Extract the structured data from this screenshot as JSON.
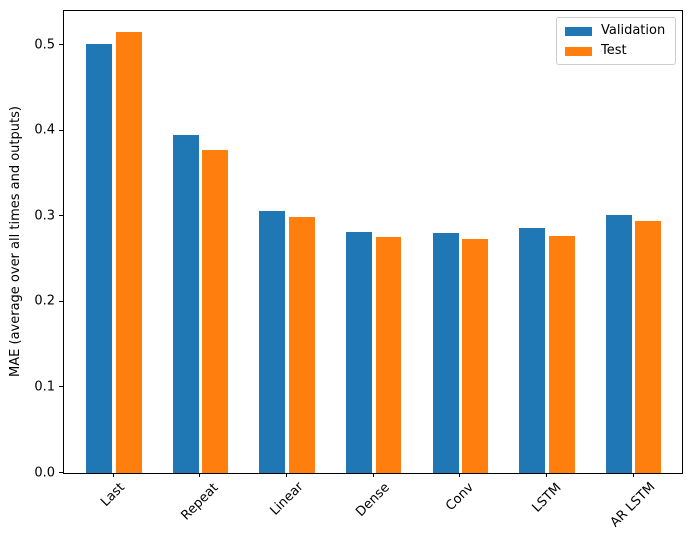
{
  "chart_data": {
    "type": "bar",
    "title": "",
    "xlabel": "",
    "ylabel": "MAE (average over all times and outputs)",
    "categories": [
      "Last",
      "Repeat",
      "Linear",
      "Dense",
      "Conv",
      "LSTM",
      "AR LSTM"
    ],
    "series": [
      {
        "name": "Validation",
        "color": "#1f77b4",
        "values": [
          0.501,
          0.395,
          0.306,
          0.282,
          0.28,
          0.286,
          0.301
        ]
      },
      {
        "name": "Test",
        "color": "#ff7f0e",
        "values": [
          0.515,
          0.377,
          0.299,
          0.276,
          0.274,
          0.277,
          0.294
        ]
      }
    ],
    "yticks": [
      0.0,
      0.1,
      0.2,
      0.3,
      0.4,
      0.5
    ],
    "ylim": [
      0,
      0.54
    ],
    "xtick_rotation": 45,
    "grid": false,
    "legend_position": "upper right",
    "bar_group": {
      "bar_width": 0.3,
      "series_offsets": [
        -0.17,
        0.17
      ]
    }
  }
}
